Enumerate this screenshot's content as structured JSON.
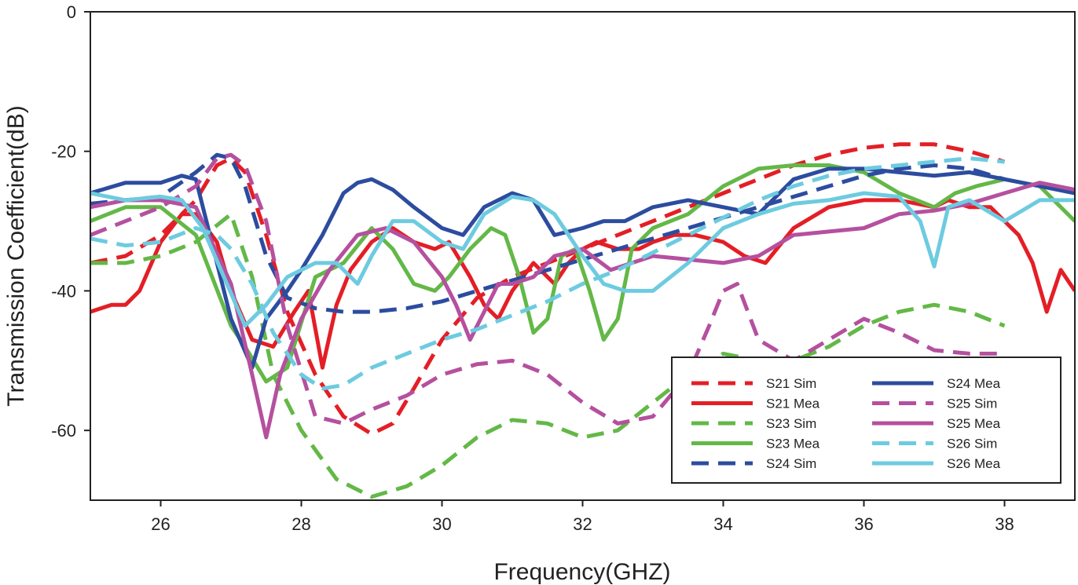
{
  "chart_data": {
    "type": "line",
    "xlabel": "Frequency(GHZ)",
    "ylabel": "Transmission Coefficient(dB)",
    "xlim": [
      25,
      39
    ],
    "ylim": [
      -70,
      0
    ],
    "xticks": [
      26,
      28,
      30,
      32,
      34,
      36,
      38
    ],
    "yticks": [
      0,
      -20,
      -40,
      -60
    ],
    "grid": false,
    "legend_position": "bottom-right",
    "series": [
      {
        "name": "S21 Sim",
        "color": "#e41e26",
        "style": "dashed",
        "x": [
          25,
          25.5,
          26,
          26.5,
          26.8,
          27,
          27.2,
          27.5,
          27.8,
          28.2,
          28.6,
          29,
          29.3,
          29.6,
          30,
          30.5,
          31,
          31.5,
          32,
          32.5,
          33,
          33.5,
          34,
          34.5,
          35,
          35.5,
          36,
          36.5,
          37,
          37.5,
          38
        ],
        "y": [
          -36,
          -35,
          -32,
          -27,
          -22,
          -21,
          -23,
          -32,
          -43,
          -52,
          -58,
          -60.5,
          -59,
          -54,
          -47,
          -41,
          -38,
          -36,
          -34,
          -32,
          -30,
          -28,
          -26,
          -24,
          -22,
          -20.5,
          -19.5,
          -19,
          -19,
          -20,
          -21.5
        ]
      },
      {
        "name": "S21 Mea",
        "color": "#e41e26",
        "style": "solid",
        "x": [
          25,
          25.3,
          25.5,
          25.7,
          26,
          26.3,
          26.5,
          26.8,
          27,
          27.3,
          27.6,
          27.9,
          28.1,
          28.3,
          28.5,
          28.7,
          29,
          29.3,
          29.6,
          29.9,
          30.1,
          30.4,
          30.6,
          30.8,
          31,
          31.3,
          31.6,
          31.8,
          32,
          32.2,
          32.5,
          32.8,
          33,
          33.3,
          33.6,
          34,
          34.3,
          34.6,
          35,
          35.5,
          36,
          36.5,
          37,
          37.2,
          37.5,
          37.8,
          38,
          38.2,
          38.4,
          38.6,
          38.8,
          39
        ],
        "y": [
          -43,
          -42,
          -42,
          -40,
          -33,
          -29,
          -29,
          -33,
          -40,
          -47,
          -48,
          -43,
          -40,
          -51,
          -42,
          -37,
          -33,
          -31,
          -33,
          -34,
          -33,
          -38,
          -42,
          -44,
          -40,
          -36,
          -39,
          -36,
          -34,
          -33,
          -34,
          -34,
          -33,
          -32,
          -32,
          -33,
          -35,
          -36,
          -31,
          -28,
          -27,
          -27,
          -28,
          -27,
          -28,
          -28,
          -30,
          -32,
          -36,
          -43,
          -37,
          -40
        ]
      },
      {
        "name": "S23 Sim",
        "color": "#63b847",
        "style": "dashed",
        "x": [
          25,
          25.5,
          26,
          26.5,
          27,
          27.3,
          27.6,
          28,
          28.5,
          29,
          29.5,
          30,
          30.5,
          31,
          31.5,
          32,
          32.5,
          33,
          33.5,
          34,
          34.5,
          35,
          35.5,
          36,
          36.5,
          37,
          37.5,
          38
        ],
        "y": [
          -36,
          -36,
          -35,
          -33,
          -29,
          -38,
          -52,
          -60,
          -67,
          -69.5,
          -68,
          -65,
          -61,
          -58.5,
          -59,
          -61,
          -60,
          -56,
          -52,
          -49,
          -50,
          -50,
          -48,
          -45,
          -43,
          -42,
          -43,
          -45
        ]
      },
      {
        "name": "S23 Mea",
        "color": "#63b847",
        "style": "solid",
        "x": [
          25,
          25.5,
          26,
          26.5,
          27,
          27.2,
          27.5,
          27.8,
          28.2,
          28.6,
          29,
          29.3,
          29.6,
          29.9,
          30.1,
          30.4,
          30.7,
          30.9,
          31.1,
          31.3,
          31.5,
          31.7,
          31.9,
          32.1,
          32.3,
          32.5,
          32.7,
          33,
          33.5,
          34,
          34.5,
          35,
          35.5,
          36,
          36.5,
          37,
          37.3,
          37.6,
          38,
          38.5,
          39
        ],
        "y": [
          -30,
          -28,
          -28,
          -32,
          -45,
          -48,
          -53,
          -51,
          -38,
          -36,
          -31,
          -34,
          -39,
          -40,
          -38,
          -34,
          -31,
          -32,
          -38,
          -46,
          -44,
          -35,
          -34,
          -40,
          -47,
          -44,
          -34,
          -31,
          -29,
          -25,
          -22.5,
          -22,
          -22,
          -23,
          -26,
          -28,
          -26,
          -25,
          -24,
          -25,
          -30
        ]
      },
      {
        "name": "S24 Sim",
        "color": "#2c4c9f",
        "style": "dashed",
        "x": [
          25,
          25.5,
          26,
          26.5,
          26.8,
          27,
          27.2,
          27.5,
          27.8,
          28.2,
          28.6,
          29,
          29.5,
          30,
          30.5,
          31,
          31.5,
          32,
          32.5,
          33,
          33.5,
          34,
          34.5,
          35,
          35.5,
          36,
          36.5,
          37,
          37.5,
          38
        ],
        "y": [
          -27.5,
          -27,
          -26.5,
          -23,
          -20.5,
          -21,
          -25,
          -35,
          -41,
          -42.5,
          -43,
          -43,
          -42.5,
          -41.5,
          -40,
          -38.5,
          -37,
          -35.5,
          -34,
          -32.5,
          -31,
          -29.5,
          -28,
          -26.5,
          -25,
          -23.5,
          -22.5,
          -22,
          -22.5,
          -24
        ]
      },
      {
        "name": "S24 Mea",
        "color": "#2c4c9f",
        "style": "solid",
        "x": [
          25,
          25.5,
          26,
          26.3,
          26.5,
          27,
          27.3,
          27.5,
          27.8,
          28,
          28.3,
          28.6,
          28.8,
          29,
          29.3,
          29.6,
          30,
          30.3,
          30.6,
          31,
          31.3,
          31.6,
          32,
          32.3,
          32.6,
          33,
          33.5,
          34,
          34.5,
          35,
          35.5,
          36,
          36.5,
          37,
          37.5,
          38,
          38.5,
          39
        ],
        "y": [
          -26,
          -24.5,
          -24.5,
          -23.5,
          -24,
          -44,
          -51,
          -44,
          -40,
          -37,
          -32,
          -26,
          -24.5,
          -24,
          -25.5,
          -28,
          -31,
          -32,
          -28,
          -26,
          -27,
          -32,
          -31,
          -30,
          -30,
          -28,
          -27,
          -28,
          -29,
          -24,
          -22.5,
          -22.5,
          -23,
          -23.5,
          -23,
          -24,
          -25,
          -26
        ]
      },
      {
        "name": "S25 Sim",
        "color": "#b5509f",
        "style": "dashed",
        "x": [
          25,
          25.5,
          26,
          26.5,
          26.8,
          27,
          27.2,
          27.5,
          27.8,
          28.2,
          28.6,
          29,
          29.5,
          30,
          30.5,
          31,
          31.5,
          32,
          32.5,
          33,
          33.5,
          33.8,
          34,
          34.2,
          34.5,
          35,
          35.5,
          36,
          36.5,
          37,
          37.5,
          38
        ],
        "y": [
          -32,
          -30,
          -28,
          -25,
          -21,
          -20.5,
          -22,
          -30,
          -45,
          -58,
          -59,
          -57,
          -55,
          -52,
          -50.5,
          -50,
          -52,
          -56,
          -59,
          -58,
          -52,
          -45,
          -40,
          -39,
          -47,
          -50,
          -47,
          -44,
          -46,
          -48.5,
          -49,
          -49
        ]
      },
      {
        "name": "S25 Mea",
        "color": "#b5509f",
        "style": "solid",
        "x": [
          25,
          25.5,
          26,
          26.5,
          27,
          27.3,
          27.5,
          27.7,
          28,
          28.4,
          28.8,
          29.2,
          29.6,
          30,
          30.2,
          30.4,
          30.6,
          30.8,
          31,
          31.3,
          31.6,
          32,
          32.4,
          32.7,
          33,
          33.5,
          34,
          34.5,
          35,
          35.5,
          36,
          36.5,
          37,
          37.5,
          38,
          38.5,
          39
        ],
        "y": [
          -28,
          -27,
          -27,
          -28,
          -39,
          -52,
          -61,
          -52,
          -44,
          -37,
          -32,
          -31,
          -33,
          -38,
          -42,
          -47,
          -43,
          -39,
          -39,
          -38,
          -35,
          -34,
          -37,
          -36,
          -35,
          -35.5,
          -36,
          -35,
          -32,
          -31.5,
          -31,
          -29,
          -28.5,
          -27.5,
          -26,
          -24.5,
          -25.5
        ]
      },
      {
        "name": "S26 Sim",
        "color": "#6dcbe0",
        "style": "dashed",
        "x": [
          25,
          25.5,
          26,
          26.5,
          26.8,
          27,
          27.3,
          27.6,
          28,
          28.3,
          28.6,
          29,
          29.5,
          30,
          30.5,
          31,
          31.5,
          32,
          32.5,
          33,
          33.5,
          34,
          34.5,
          35,
          35.5,
          36,
          36.5,
          37,
          37.5,
          38
        ],
        "y": [
          -32.5,
          -33.5,
          -33,
          -31,
          -32,
          -34,
          -39,
          -46,
          -52,
          -54,
          -53.5,
          -51,
          -49,
          -47,
          -45.5,
          -43.5,
          -41.5,
          -39,
          -37,
          -34.5,
          -32,
          -29.5,
          -27,
          -25,
          -23.5,
          -22.5,
          -22,
          -21.5,
          -21,
          -21.5
        ]
      },
      {
        "name": "S26 Mea",
        "color": "#6dcbe0",
        "style": "solid",
        "x": [
          25,
          25.5,
          26,
          26.3,
          26.6,
          26.9,
          27.2,
          27.5,
          27.8,
          28.2,
          28.5,
          28.8,
          29,
          29.3,
          29.6,
          30,
          30.3,
          30.6,
          31,
          31.3,
          31.6,
          32,
          32.3,
          32.6,
          33,
          33.5,
          34,
          34.5,
          35,
          35.5,
          36,
          36.5,
          36.8,
          37,
          37.2,
          37.5,
          38,
          38.5,
          39
        ],
        "y": [
          -26,
          -27,
          -26.5,
          -27,
          -31,
          -38,
          -45,
          -42,
          -38,
          -36,
          -36,
          -39,
          -35,
          -30,
          -30,
          -33,
          -34,
          -29,
          -26.5,
          -27,
          -29,
          -35,
          -39,
          -40,
          -40,
          -36,
          -31,
          -29,
          -27.5,
          -27,
          -26,
          -26.5,
          -30,
          -36.5,
          -28,
          -27,
          -30,
          -27,
          -27
        ]
      }
    ]
  }
}
